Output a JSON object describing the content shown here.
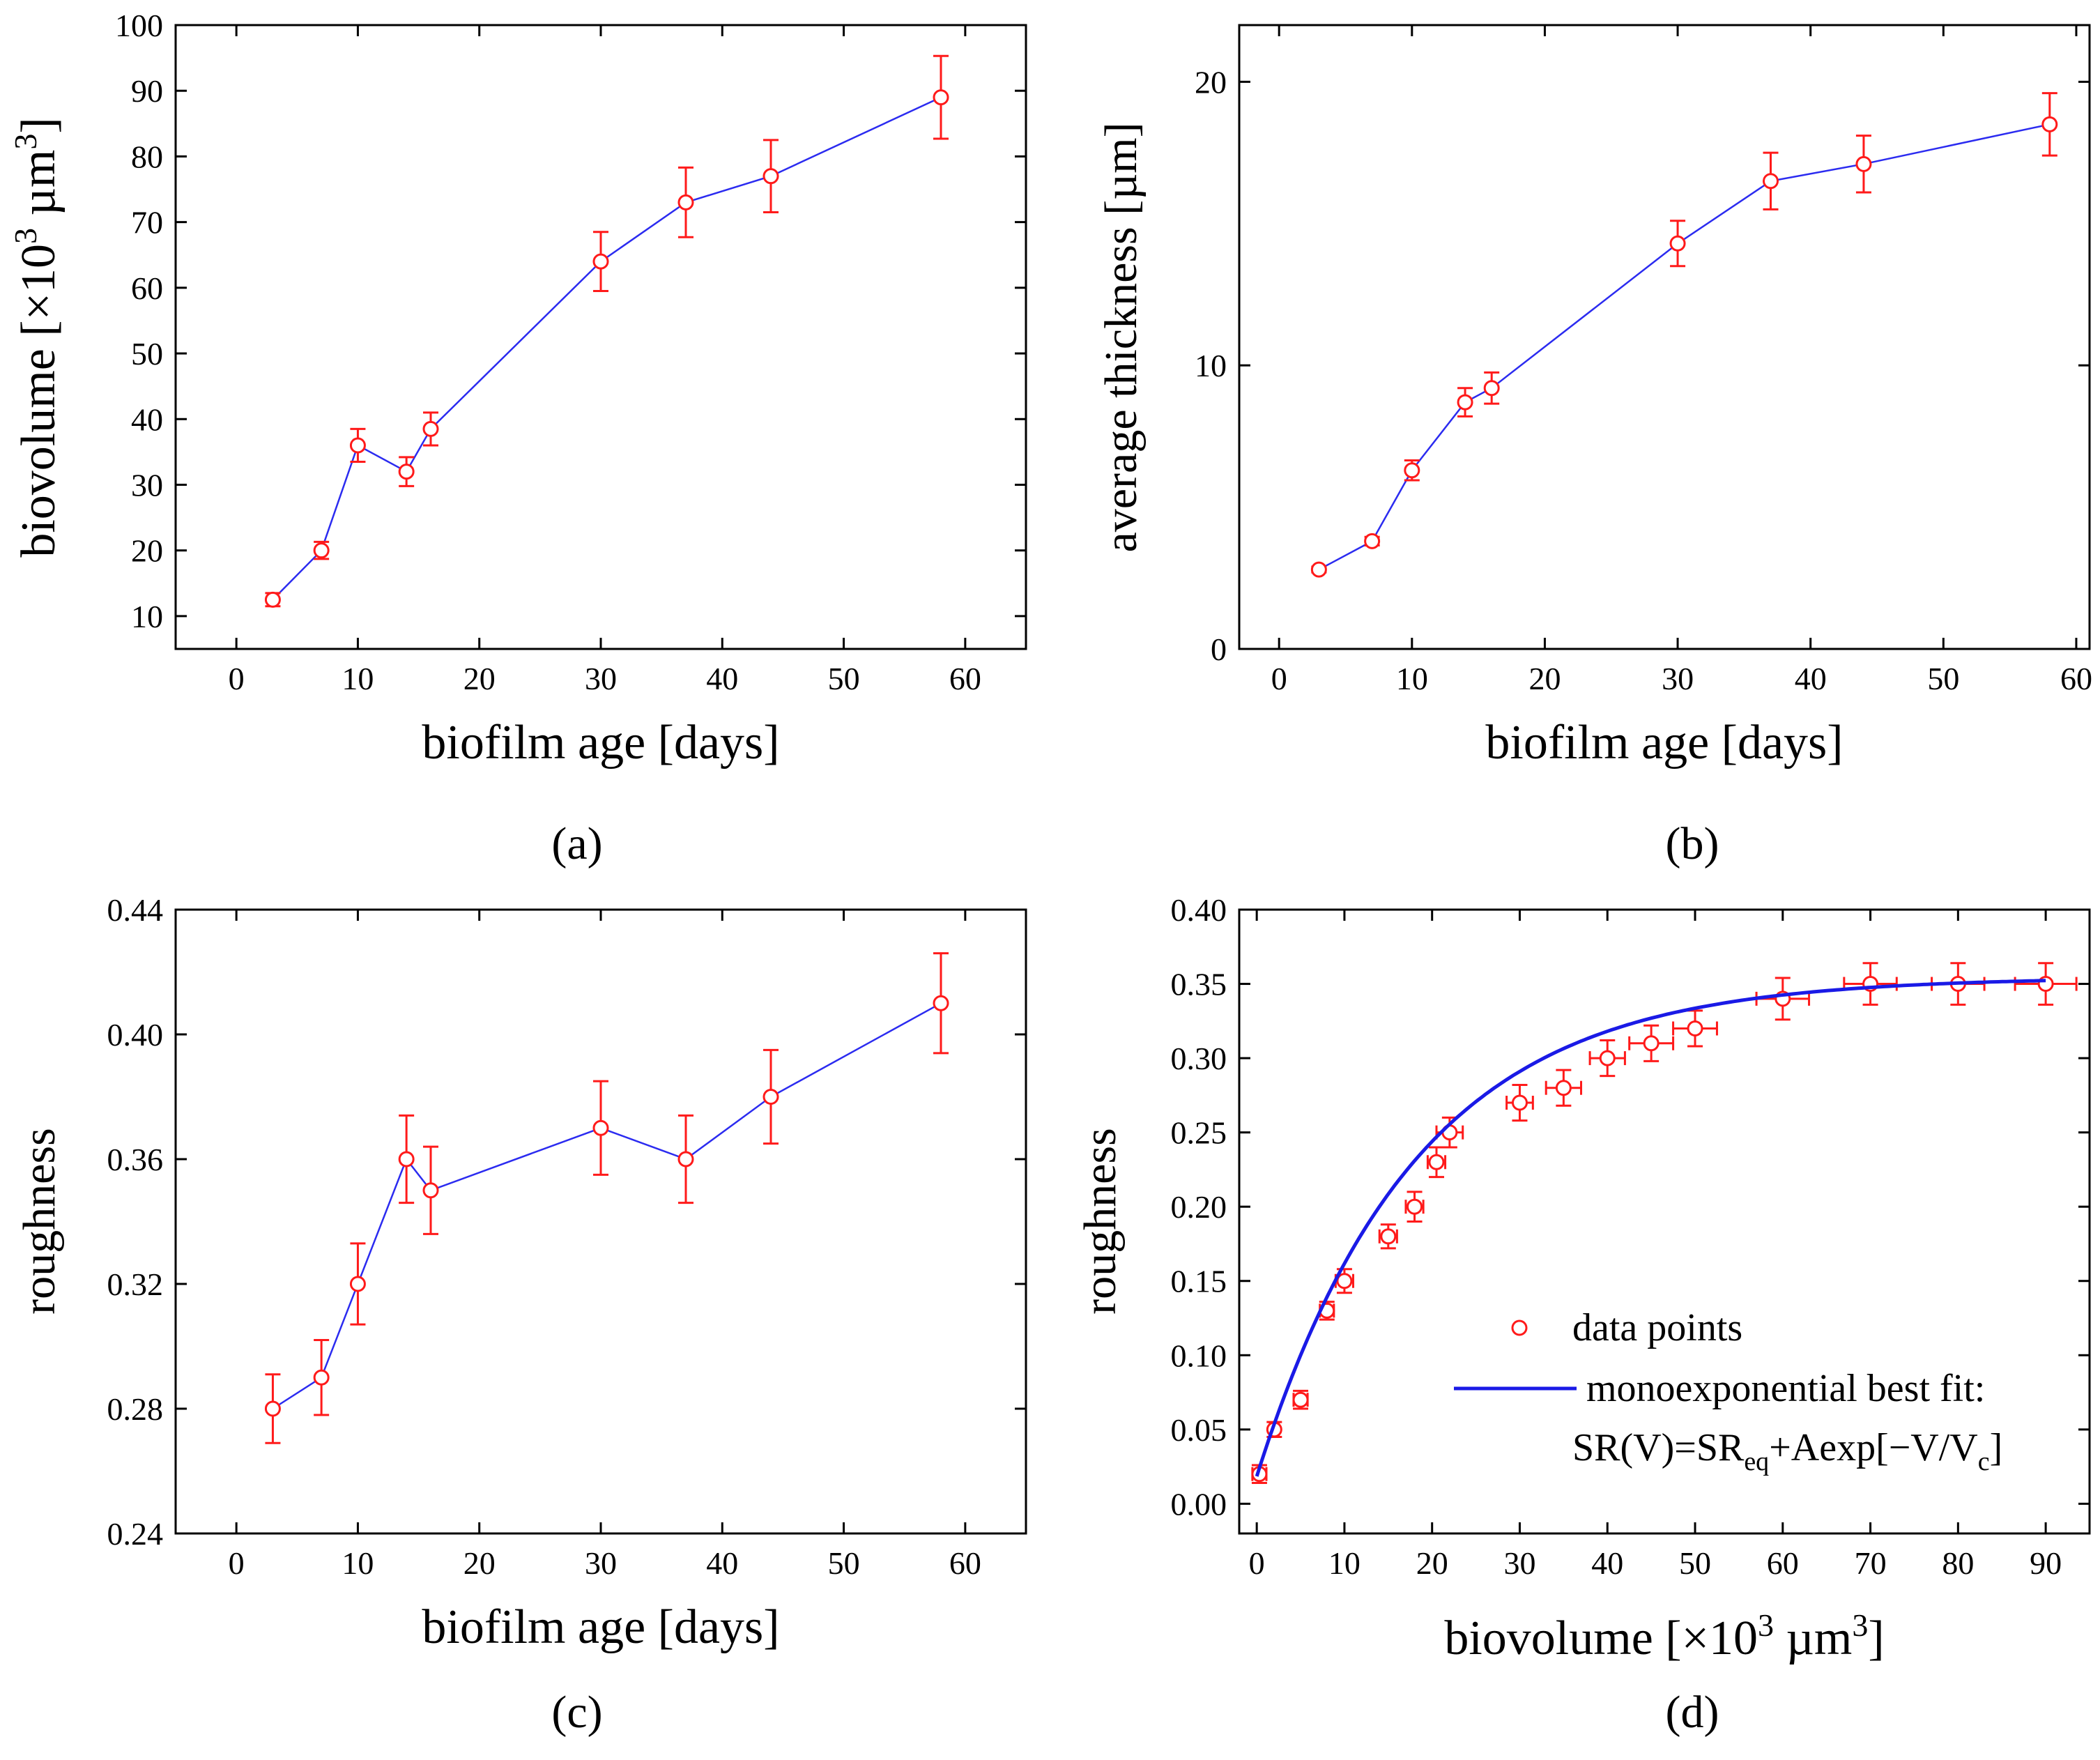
{
  "colors": {
    "line": "#2b2bf0",
    "marker": "#ff1a1a",
    "fit": "#1a1ae6",
    "axis": "#000000"
  },
  "chart_data": [
    {
      "id": "a",
      "type": "line",
      "panel_label": "(a)",
      "xlabel": "biofilm age [days]",
      "ylabel": "biovolume [×10³ µm³]",
      "ylabel_parts": {
        "main": "biovolume [×10",
        "sup1": "3",
        "mid": " µm",
        "sup2": "3",
        "end": "]"
      },
      "xlim": [
        -5,
        65
      ],
      "ylim": [
        5,
        100
      ],
      "xticks": [
        0,
        10,
        20,
        30,
        40,
        50,
        60
      ],
      "yticks": [
        10,
        20,
        30,
        40,
        50,
        60,
        70,
        80,
        90,
        100
      ],
      "xtick_labels": [
        "0",
        "10",
        "20",
        "30",
        "40",
        "50",
        "60"
      ],
      "ytick_labels": [
        "10",
        "20",
        "30",
        "40",
        "50",
        "60",
        "70",
        "80",
        "90",
        "100"
      ],
      "series": [
        {
          "x": [
            3,
            7,
            10,
            14,
            16,
            30,
            37,
            44,
            58
          ],
          "y": [
            12.5,
            20,
            36,
            32,
            38.5,
            64,
            73,
            77,
            89
          ],
          "yerr": [
            1,
            1.3,
            2.5,
            2.2,
            2.5,
            4.5,
            5.3,
            5.5,
            6.3
          ]
        }
      ]
    },
    {
      "id": "b",
      "type": "line",
      "panel_label": "(b)",
      "xlabel": "biofilm age [days]",
      "ylabel": "average thickness [µm]",
      "xlim": [
        -3,
        61
      ],
      "ylim": [
        0,
        22
      ],
      "xticks": [
        0,
        10,
        20,
        30,
        40,
        50,
        60
      ],
      "yticks": [
        0,
        10,
        20
      ],
      "xtick_labels": [
        "0",
        "10",
        "20",
        "30",
        "40",
        "50",
        "60"
      ],
      "ytick_labels": [
        "0",
        "10",
        "20"
      ],
      "series": [
        {
          "x": [
            3,
            7,
            10,
            14,
            16,
            30,
            37,
            44,
            58
          ],
          "y": [
            2.8,
            3.8,
            6.3,
            8.7,
            9.2,
            14.3,
            16.5,
            17.1,
            18.5
          ],
          "yerr": [
            0.1,
            0.15,
            0.35,
            0.5,
            0.55,
            0.8,
            1.0,
            1.0,
            1.1
          ]
        }
      ]
    },
    {
      "id": "c",
      "type": "line",
      "panel_label": "(c)",
      "xlabel": "biofilm age [days]",
      "ylabel": "roughness",
      "xlim": [
        -5,
        65
      ],
      "ylim": [
        0.24,
        0.44
      ],
      "xticks": [
        0,
        10,
        20,
        30,
        40,
        50,
        60
      ],
      "yticks": [
        0.24,
        0.28,
        0.32,
        0.36,
        0.4,
        0.44
      ],
      "xtick_labels": [
        "0",
        "10",
        "20",
        "30",
        "40",
        "50",
        "60"
      ],
      "ytick_labels": [
        "0.24",
        "0.28",
        "0.32",
        "0.36",
        "0.40",
        "0.44"
      ],
      "series": [
        {
          "x": [
            3,
            7,
            10,
            14,
            16,
            30,
            37,
            44,
            58
          ],
          "y": [
            0.28,
            0.29,
            0.32,
            0.36,
            0.35,
            0.37,
            0.36,
            0.38,
            0.41
          ],
          "yerr": [
            0.011,
            0.012,
            0.013,
            0.014,
            0.014,
            0.015,
            0.014,
            0.015,
            0.016
          ]
        }
      ]
    },
    {
      "id": "d",
      "type": "scatter",
      "panel_label": "(d)",
      "xlabel": "biovolume [×10³ µm³]",
      "xlabel_parts": {
        "main": "biovolume [×10",
        "sup1": "3",
        "mid": " µm",
        "sup2": "3",
        "end": "]"
      },
      "ylabel": "roughness",
      "xlim": [
        -2,
        95
      ],
      "ylim": [
        -0.02,
        0.4
      ],
      "xticks": [
        0,
        10,
        20,
        30,
        40,
        50,
        60,
        70,
        80,
        90
      ],
      "yticks": [
        0.0,
        0.05,
        0.1,
        0.15,
        0.2,
        0.25,
        0.3,
        0.35,
        0.4
      ],
      "xtick_labels": [
        "0",
        "10",
        "20",
        "30",
        "40",
        "50",
        "60",
        "70",
        "80",
        "90"
      ],
      "ytick_labels": [
        "0.00",
        "0.05",
        "0.10",
        "0.15",
        "0.20",
        "0.25",
        "0.30",
        "0.35",
        "0.40"
      ],
      "series": [
        {
          "name": "data points",
          "x": [
            0.3,
            2,
            5,
            8,
            10,
            15,
            18,
            20.5,
            22,
            30,
            35,
            40,
            45,
            50,
            60,
            70,
            80,
            90
          ],
          "y": [
            0.02,
            0.05,
            0.07,
            0.13,
            0.15,
            0.18,
            0.2,
            0.23,
            0.25,
            0.27,
            0.28,
            0.3,
            0.31,
            0.32,
            0.34,
            0.35,
            0.35,
            0.35
          ],
          "xerr": [
            0.8,
            0.5,
            0.8,
            0.8,
            1,
            1,
            1,
            1,
            1.5,
            1.5,
            2,
            2,
            2.5,
            2.5,
            3,
            3,
            3,
            3.5
          ],
          "yerr": [
            0.006,
            0.005,
            0.006,
            0.006,
            0.008,
            0.008,
            0.01,
            0.01,
            0.01,
            0.012,
            0.012,
            0.012,
            0.012,
            0.012,
            0.014,
            0.014,
            0.014,
            0.014
          ]
        },
        {
          "name": "monoexponential best fit:",
          "type": "fit",
          "function": "SR(V)=SReq+Aexp[−V/Vc]",
          "SReq": 0.3545,
          "A": -0.336,
          "Vc": 18,
          "x_range": [
            0,
            90
          ]
        }
      ],
      "legend": {
        "position": "bottom-right",
        "entries": [
          "data points",
          "monoexponential best fit:"
        ],
        "formula_parts": {
          "a": "SR(V)=SR",
          "sub1": "eq",
          "b": "+Aexp[−V/V",
          "sub2": "c",
          "c": "]"
        }
      }
    }
  ]
}
